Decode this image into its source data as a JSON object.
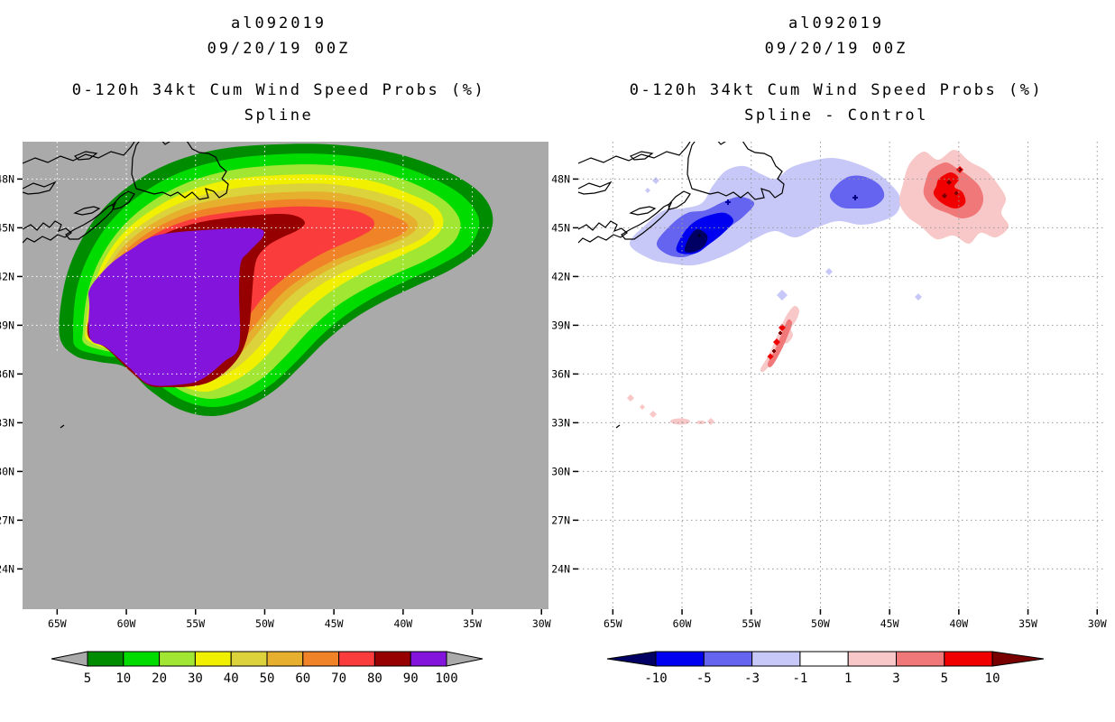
{
  "page": {
    "background": "#ffffff"
  },
  "panels": [
    {
      "id": "spline",
      "header": {
        "storm_id": "al092019",
        "datetime": "09/20/19 00Z",
        "product": "0-120h 34kt Cum Wind Speed Probs (%)",
        "method": "Spline"
      },
      "map": {
        "background": "#aaaaaa",
        "gridline_color": "#ffffff",
        "coastline_color": "#000000",
        "frame_color": "#000000",
        "lat_labels": [
          "48N",
          "45N",
          "42N",
          "39N",
          "36N",
          "33N",
          "30N",
          "27N",
          "24N"
        ],
        "lon_labels": [
          "65W",
          "60W",
          "55W",
          "50W",
          "45W",
          "40W",
          "35W",
          "30W"
        ]
      },
      "colorbar": {
        "tick_labels": [
          "5",
          "10",
          "20",
          "30",
          "40",
          "50",
          "60",
          "70",
          "80",
          "90",
          "100"
        ],
        "colors": [
          "#008c00",
          "#00dc00",
          "#a0e632",
          "#f0f000",
          "#dcd23c",
          "#e6af2d",
          "#f08228",
          "#fa3c3c",
          "#960000",
          "#8214dc"
        ],
        "left_arrow_color": "#aaaaaa",
        "right_arrow_color": "#aaaaaa"
      }
    },
    {
      "id": "spline-minus-control",
      "header": {
        "storm_id": "al092019",
        "datetime": "09/20/19 00Z",
        "product": "0-120h 34kt Cum Wind Speed Probs (%)",
        "method": "Spline - Control"
      },
      "map": {
        "background": "#ffffff",
        "gridline_color": "#999999",
        "coastline_color": "#000000",
        "frame_color": "#000000",
        "lat_labels": [
          "48N",
          "45N",
          "42N",
          "39N",
          "36N",
          "33N",
          "30N",
          "27N",
          "24N"
        ],
        "lon_labels": [
          "65W",
          "60W",
          "55W",
          "50W",
          "45W",
          "40W",
          "35W",
          "30W"
        ]
      },
      "colorbar": {
        "tick_labels": [
          "-10",
          "-5",
          "-3",
          "-1",
          "1",
          "3",
          "5",
          "10"
        ],
        "colors": [
          "#0000f0",
          "#6464f0",
          "#c8c8f8",
          "#ffffff",
          "#f8c8c8",
          "#f07878",
          "#f00000"
        ],
        "left_arrow_color": "#000064",
        "right_arrow_color": "#780000"
      }
    }
  ],
  "chart_data": [
    {
      "type": "heatmap",
      "subtype": "filled_contour_map",
      "title": "al092019 09/20/19 00Z 0-120h 34kt Cum Wind Speed Probs (%) Spline",
      "units": "%",
      "levels": [
        5,
        10,
        20,
        30,
        40,
        50,
        60,
        70,
        80,
        90,
        100
      ],
      "palette": [
        "#008c00",
        "#00dc00",
        "#a0e632",
        "#f0f000",
        "#dcd23c",
        "#e6af2d",
        "#f08228",
        "#fa3c3c",
        "#960000",
        "#8214dc"
      ],
      "background_below_min": "#aaaaaa",
      "lon_range_degW": [
        67.5,
        29.5
      ],
      "lat_range_degN": [
        21.5,
        50.3
      ],
      "grid": {
        "lat_step_deg": 3,
        "lon_step_deg": 5,
        "style": "white dotted"
      },
      "features": [
        {
          "label": "90-100% core",
          "approx_center": {
            "lon_degW": 57.5,
            "lat_degN": 40.5
          },
          "approx_extent": "62.7W-52.2W, 35.7N-45.3N"
        },
        {
          "label": "80-90% tongue",
          "approx_center": {
            "lon_degW": 49.5,
            "lat_degN": 45.3
          }
        },
        {
          "label": "5-70% swath tail",
          "description": "bands extend ENE toward ~32.5W near 45N-48.5N"
        },
        {
          "label": "outer 5% boundary",
          "approx_extent": "66.5W-32.5W, 33.5N-50.2N"
        }
      ]
    },
    {
      "type": "heatmap",
      "subtype": "filled_contour_difference_map",
      "title": "al092019 09/20/19 00Z 0-120h 34kt Cum Wind Speed Probs (%) Spline - Control",
      "units": "%",
      "levels": [
        -10,
        -5,
        -3,
        -1,
        1,
        3,
        5,
        10
      ],
      "palette": [
        "#000064",
        "#0000f0",
        "#6464f0",
        "#c8c8f8",
        "#ffffff",
        "#f8c8c8",
        "#f07878",
        "#f00000",
        "#780000"
      ],
      "lon_range_degW": [
        67.5,
        29.5
      ],
      "lat_range_degN": [
        21.5,
        50.3
      ],
      "grid": {
        "lat_step_deg": 3,
        "lon_step_deg": 5,
        "style": "gray dotted"
      },
      "features": [
        {
          "label": "negative core < -10%",
          "approx_center": {
            "lon_degW": 58.8,
            "lat_degN": 44.3
          }
        },
        {
          "label": "negative band -5..-3% SW of Newfoundland",
          "approx_center": {
            "lon_degW": 58,
            "lat_degN": 45.5
          }
        },
        {
          "label": "negative lobe -5..-3%",
          "approx_center": {
            "lon_degW": 47,
            "lat_degN": 47.2
          }
        },
        {
          "label": "positive blob 5-10% (specks >10%)",
          "approx_center": {
            "lon_degW": 40.3,
            "lat_degN": 47.2
          }
        },
        {
          "label": "positive streak 3-10%",
          "approx_center": {
            "lon_degW": 53.2,
            "lat_degN": 38.2
          }
        },
        {
          "label": "weak positive specks 1-3% near 33N-34N",
          "approx_center": {
            "lon_degW": 60,
            "lat_degN": 33.3
          }
        }
      ]
    }
  ]
}
